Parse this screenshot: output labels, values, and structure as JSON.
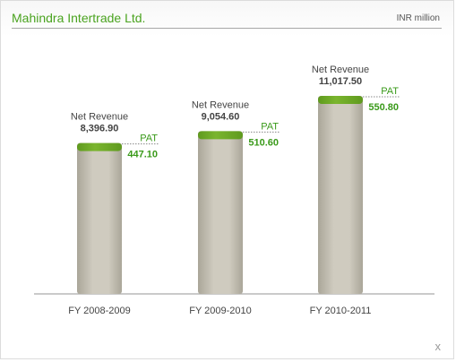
{
  "header": {
    "company": "Mahindra Intertrade Ltd.",
    "unit": "INR million"
  },
  "close_label": "x",
  "chart_data": {
    "type": "bar",
    "categories": [
      "FY 2008-2009",
      "FY 2009-2010",
      "FY 2010-2011"
    ],
    "series": [
      {
        "name": "Net Revenue",
        "values": [
          8396.9,
          9054.6,
          11017.5
        ],
        "labels": [
          "8,396.90",
          "9,054.60",
          "11,017.50"
        ]
      },
      {
        "name": "PAT",
        "values": [
          447.1,
          510.6,
          550.8
        ],
        "labels": [
          "447.10",
          "510.60",
          "550.80"
        ]
      }
    ],
    "colors": {
      "bar": "#cfcbbf",
      "bar_shadow": "#aaa699",
      "cap": "#7ab52e",
      "cap_dark": "#5f9a1e",
      "pat": "#3a9a1a",
      "label": "#444444",
      "axis": "#b8b8b8"
    }
  }
}
